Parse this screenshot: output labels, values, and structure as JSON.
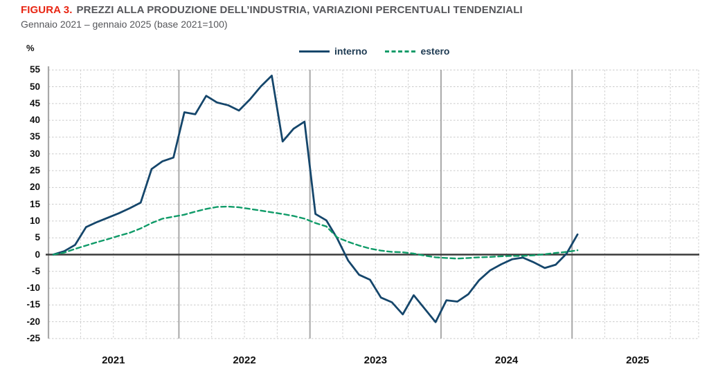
{
  "figure": {
    "label": "FIGURA 3.",
    "title": "PREZZI ALLA PRODUZIONE DELL’INDUSTRIA, VARIAZIONI PERCENTUALI TENDENZIALI",
    "subtitle": "Gennaio 2021 – gennaio 2025 (base 2021=100)",
    "unit_label": "%"
  },
  "colors": {
    "figure_label_red": "#E82512",
    "title_gray": "#55565A",
    "interno_blue": "#15466B",
    "estero_green": "#0F9B68",
    "zero_axis": "#3A3A3A",
    "grid_gray": "#C9C9C9",
    "year_line_gray": "#A8A8A8"
  },
  "chart_data": {
    "type": "line",
    "title": "Prezzi alla produzione dell'industria, variazioni percentuali tendenziali",
    "x_frequency": "monthly",
    "x_start": "2021-01",
    "x_end": "2025-01",
    "x_tick_labels": [
      "2021",
      "2022",
      "2023",
      "2024",
      "2025"
    ],
    "ylabel": "%",
    "ylim": [
      -25,
      55
    ],
    "y_ticks": [
      55,
      50,
      45,
      40,
      35,
      30,
      25,
      20,
      15,
      10,
      5,
      0,
      -5,
      -10,
      -15,
      -20,
      -25
    ],
    "grid": "horizontal dashed every 5, vertical dashed quarterly, solid gray at year boundaries, solid dark line at 0",
    "legend_position": "top-center",
    "series": [
      {
        "name": "interno",
        "style": "solid",
        "color": "#15466B",
        "values": [
          0.0,
          1.0,
          2.9,
          8.2,
          9.7,
          11.0,
          12.3,
          13.8,
          15.5,
          25.5,
          27.8,
          28.9,
          42.4,
          41.8,
          47.3,
          45.3,
          44.5,
          42.9,
          46.2,
          50.1,
          53.3,
          33.7,
          37.5,
          39.6,
          12.1,
          10.2,
          4.8,
          -1.8,
          -6.0,
          -7.5,
          -12.8,
          -14.2,
          -17.8,
          -12.1,
          -16.1,
          -20.1,
          -13.6,
          -14.0,
          -11.8,
          -7.6,
          -4.7,
          -2.9,
          -1.4,
          -0.9,
          -2.3,
          -4.0,
          -3.0,
          0.3,
          6.0
        ]
      },
      {
        "name": "estero",
        "style": "dashed",
        "color": "#0F9B68",
        "values": [
          0.0,
          0.6,
          1.7,
          2.7,
          3.7,
          4.6,
          5.6,
          6.5,
          7.8,
          9.4,
          10.7,
          11.3,
          11.9,
          12.8,
          13.6,
          14.2,
          14.3,
          14.1,
          13.6,
          13.1,
          12.6,
          12.1,
          11.5,
          10.7,
          9.4,
          8.4,
          5.1,
          3.8,
          2.7,
          1.8,
          1.2,
          0.8,
          0.7,
          0.3,
          -0.3,
          -0.8,
          -1.0,
          -1.2,
          -1.0,
          -0.8,
          -0.7,
          -0.5,
          -0.4,
          -0.4,
          -0.2,
          0.1,
          0.5,
          0.8,
          1.3
        ]
      }
    ]
  }
}
